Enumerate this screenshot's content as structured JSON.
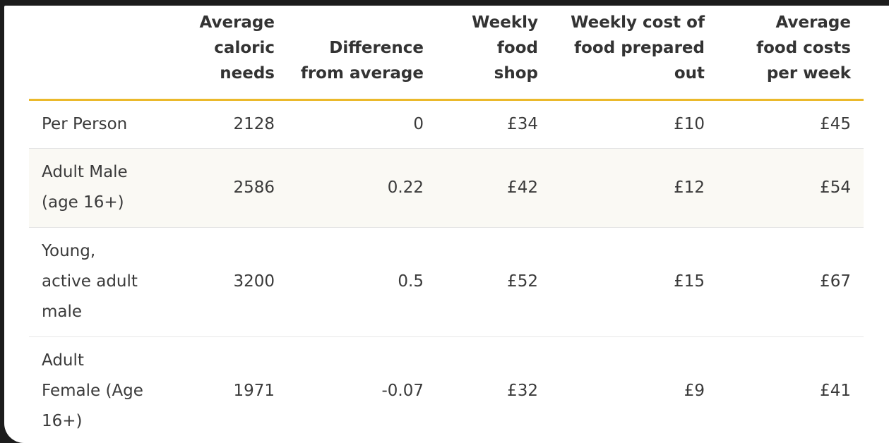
{
  "table": {
    "headers": [
      "",
      "Average caloric needs",
      "Difference from average",
      "Weekly food shop",
      "Weekly cost of food prepared out",
      "Average food costs per week"
    ],
    "rows": [
      [
        "Per Person",
        "2128",
        "0",
        "£34",
        "£10",
        "£45"
      ],
      [
        "Adult Male (age 16+)",
        "2586",
        "0.22",
        "£42",
        "£12",
        "£54"
      ],
      [
        "Young, active adult male",
        "3200",
        "0.5",
        "£52",
        "£15",
        "£67"
      ],
      [
        "Adult Female (Age 16+)",
        "1971",
        "-0.07",
        "£32",
        "£9",
        "£41"
      ]
    ]
  },
  "colors": {
    "header_rule": "#ebb92b",
    "striped_row": "#faf9f4",
    "row_divider": "#e6e6e6",
    "window_background": "#1c1c1c"
  }
}
